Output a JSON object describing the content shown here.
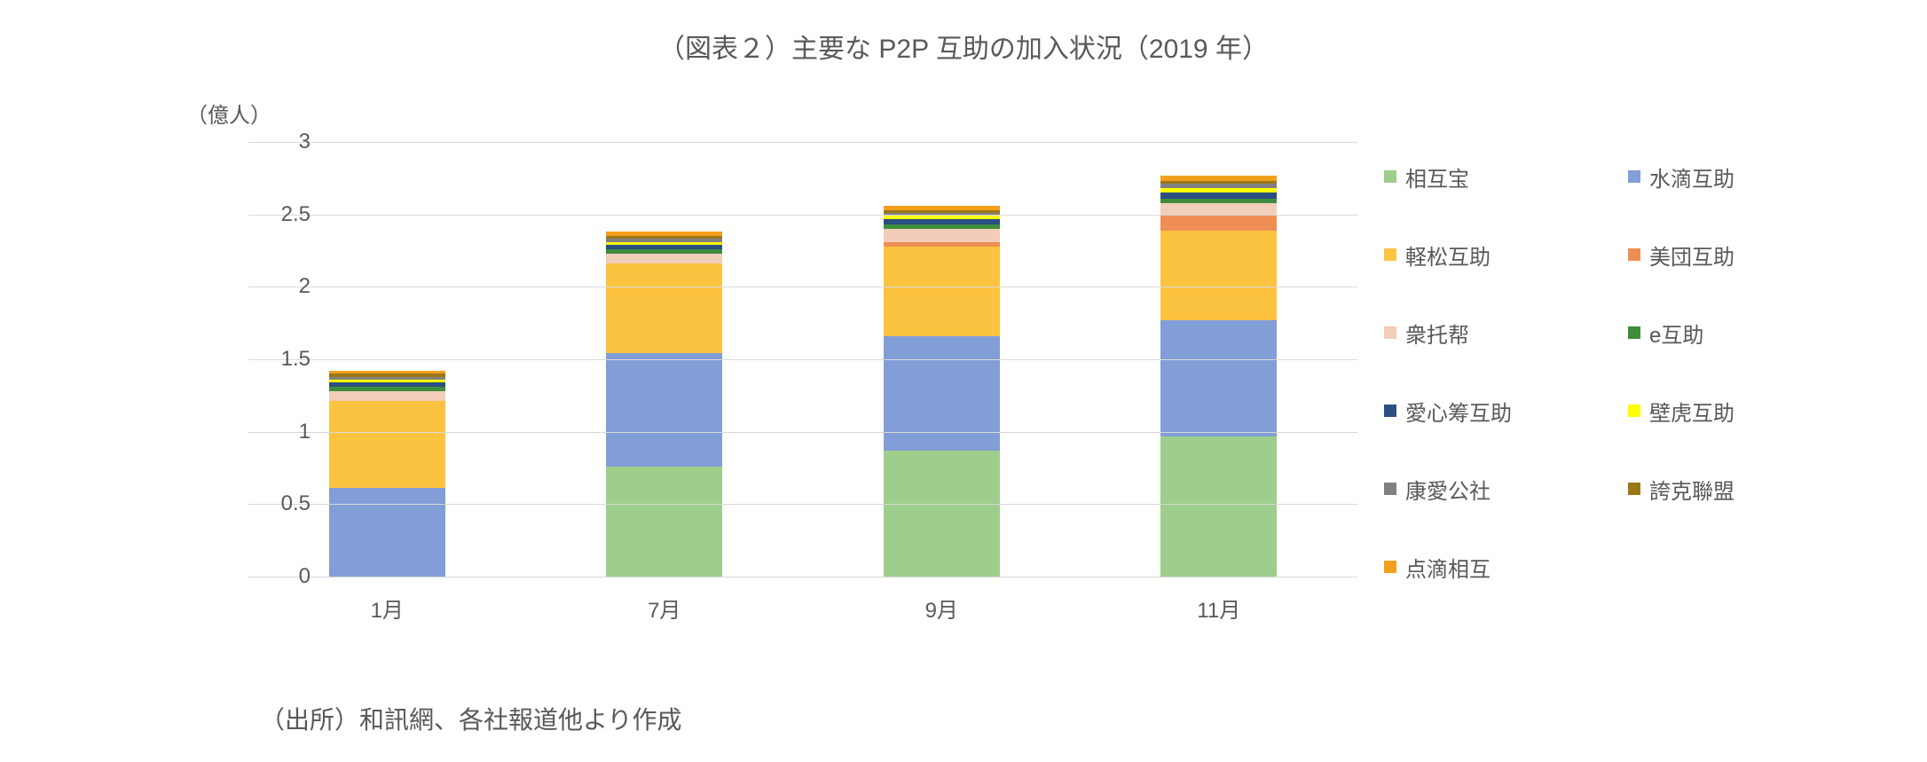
{
  "title": "（図表２）主要な P2P 互助の加入状況（2019 年）",
  "title_fontsize": 30,
  "title_color": "#595959",
  "y_unit": "（億人）",
  "source": "（出所）和訊網、各社報道他より作成",
  "source_fontsize": 28,
  "label_fontsize": 24,
  "tick_fontsize": 24,
  "legend_fontsize": 24,
  "background_color": "#ffffff",
  "grid_color": "#d9d9d9",
  "chart": {
    "type": "stacked_bar",
    "ylim": [
      0,
      3
    ],
    "ytick_step": 0.5,
    "yticks": [
      "0",
      "0.5",
      "1",
      "1.5",
      "2",
      "2.5",
      "3"
    ],
    "categories": [
      "1月",
      "7月",
      "9月",
      "11月"
    ],
    "bar_width_ratio": 0.42,
    "series": [
      {
        "name": "相互宝",
        "color": "#9dce8b",
        "values": [
          0.0,
          0.76,
          0.87,
          0.97
        ]
      },
      {
        "name": "水滴互助",
        "color": "#829ed6",
        "values": [
          0.61,
          0.78,
          0.79,
          0.8
        ]
      },
      {
        "name": "軽松互助",
        "color": "#fbc33f",
        "values": [
          0.6,
          0.62,
          0.62,
          0.62
        ]
      },
      {
        "name": "美団互助",
        "color": "#ee8e55",
        "values": [
          0.0,
          0.0,
          0.03,
          0.1
        ]
      },
      {
        "name": "衆托帮",
        "color": "#f2cdb9",
        "values": [
          0.07,
          0.07,
          0.09,
          0.09
        ]
      },
      {
        "name": "e互助",
        "color": "#3d8c3b",
        "values": [
          0.03,
          0.03,
          0.03,
          0.03
        ]
      },
      {
        "name": "愛心筹互助",
        "color": "#2a4f80",
        "values": [
          0.03,
          0.03,
          0.04,
          0.04
        ]
      },
      {
        "name": "壁虎互助",
        "color": "#ffff00",
        "values": [
          0.02,
          0.02,
          0.02,
          0.03
        ]
      },
      {
        "name": "康愛公社",
        "color": "#808080",
        "values": [
          0.02,
          0.02,
          0.02,
          0.03
        ]
      },
      {
        "name": "誇克聯盟",
        "color": "#9b7717",
        "values": [
          0.02,
          0.02,
          0.02,
          0.02
        ]
      },
      {
        "name": "点滴相互",
        "color": "#f2a01c",
        "values": [
          0.02,
          0.03,
          0.03,
          0.04
        ]
      }
    ]
  }
}
